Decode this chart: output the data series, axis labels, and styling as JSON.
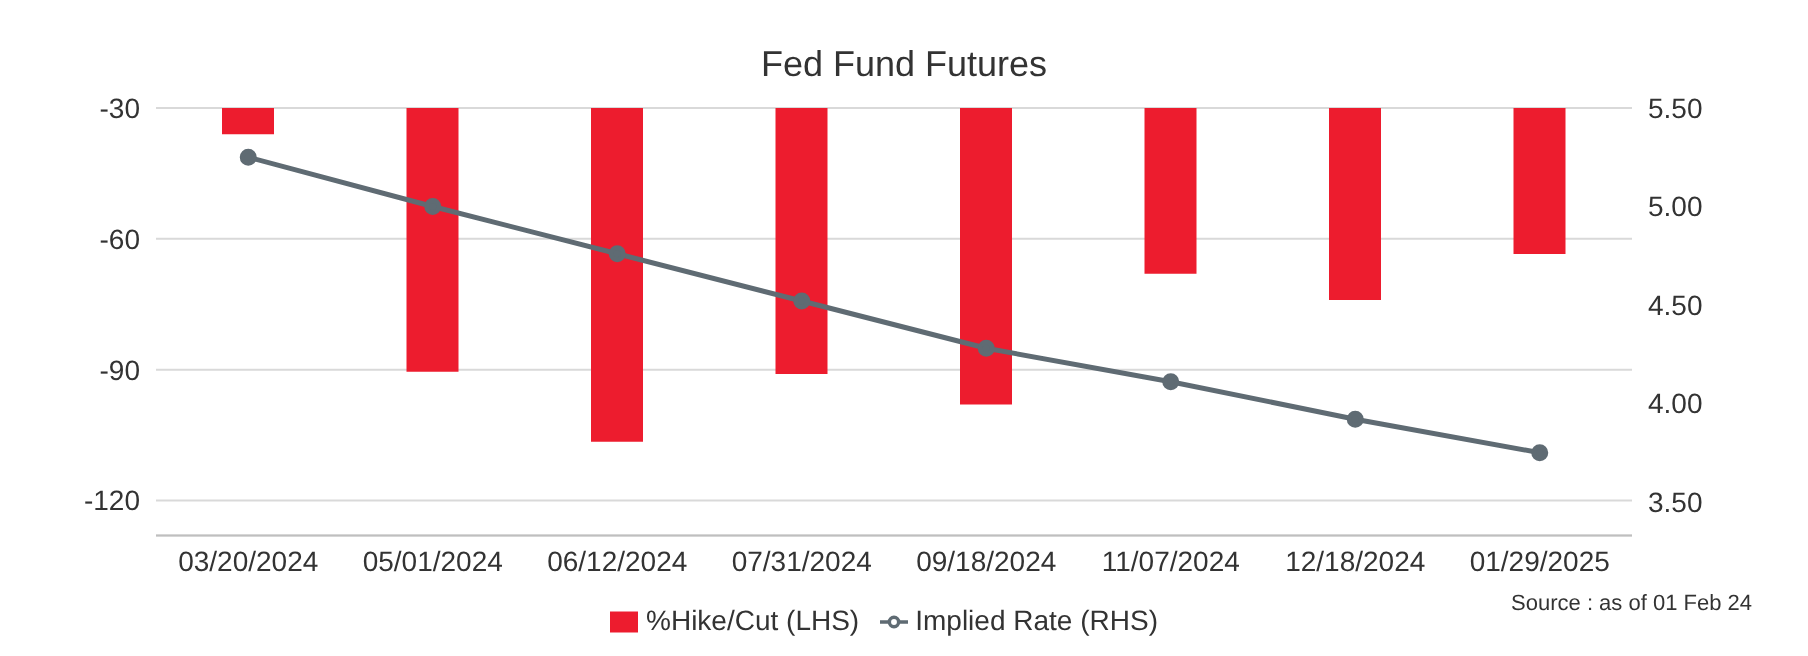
{
  "chart_data": {
    "type": "bar",
    "title": "Fed Fund Futures",
    "categories": [
      "03/20/2024",
      "05/01/2024",
      "06/12/2024",
      "07/31/2024",
      "09/18/2024",
      "11/07/2024",
      "12/18/2024",
      "01/29/2025"
    ],
    "series": [
      {
        "name": "%Hike/Cut (LHS)",
        "color": "#ed1c2e",
        "base": [
          -30,
          -30,
          -30,
          -30,
          -30,
          -30,
          -30,
          -30
        ],
        "values": [
          -6,
          -60.5,
          -76.5,
          -61,
          -68,
          -38,
          -44,
          -33.5
        ]
      },
      {
        "name": "Implied Rate (RHS)",
        "type": "line",
        "axis": "y2",
        "color": "#5f6b73",
        "marker": "circle",
        "values": [
          5.25,
          5.0,
          4.76,
          4.52,
          4.28,
          4.11,
          3.92,
          3.75
        ]
      }
    ],
    "ylim": [
      -128,
      -30
    ],
    "yticks": [
      -30,
      -60,
      -90,
      -120
    ],
    "y2lim": [
      3.33,
      5.5
    ],
    "y2ticks": [
      {
        "value": 3.5,
        "label": "3.50"
      },
      {
        "value": 4,
        "label": "4.00"
      },
      {
        "value": 4.5,
        "label": "4.50"
      },
      {
        "value": 5,
        "label": "5.00"
      },
      {
        "value": 5.5,
        "label": "5.50"
      }
    ],
    "grid": "y",
    "legend": "bottom",
    "annotations": [
      "Source : as of 01 Feb 24"
    ]
  }
}
